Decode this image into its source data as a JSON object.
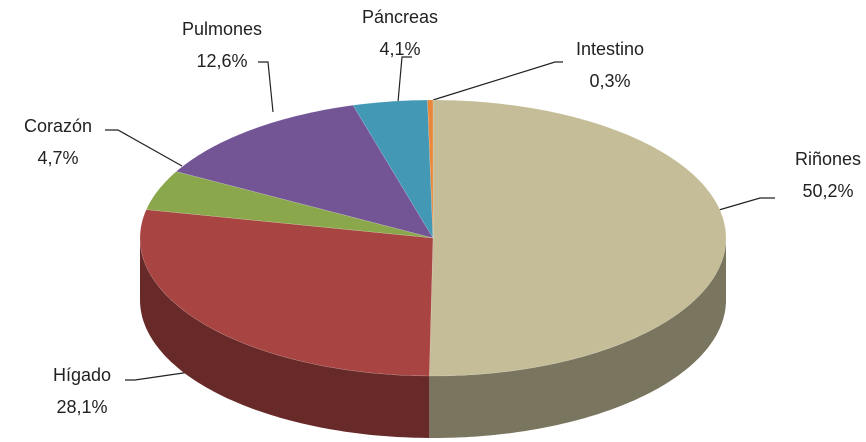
{
  "chart_data": {
    "type": "pie",
    "categories": [
      "Riñones",
      "Hígado",
      "Corazón",
      "Pulmones",
      "Páncreas",
      "Intestino"
    ],
    "values": [
      50.2,
      28.1,
      4.7,
      12.6,
      4.1,
      0.3
    ],
    "value_labels": [
      "50,2%",
      "28,1%",
      "4,7%",
      "12,6%",
      "4,1%",
      "0,3%"
    ],
    "colors": [
      "#c4bd97",
      "#a84442",
      "#8aa84b",
      "#735596",
      "#4398b6",
      "#e9883a"
    ]
  }
}
